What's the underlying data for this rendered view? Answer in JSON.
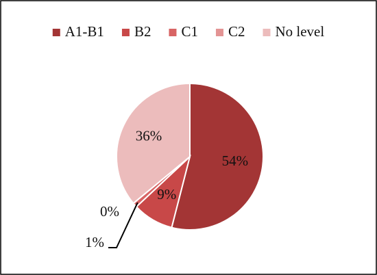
{
  "chart_data": {
    "type": "pie",
    "categories": [
      "A1-B1",
      "B2",
      "C1",
      "C2",
      "No level"
    ],
    "values": [
      54,
      9,
      1,
      0,
      36
    ],
    "value_labels": [
      "54%",
      "9%",
      "1%",
      "0%",
      "36%"
    ],
    "colors": [
      "#a33535",
      "#c84848",
      "#d86464",
      "#e39494",
      "#ecbcbc"
    ],
    "legend": "top"
  }
}
